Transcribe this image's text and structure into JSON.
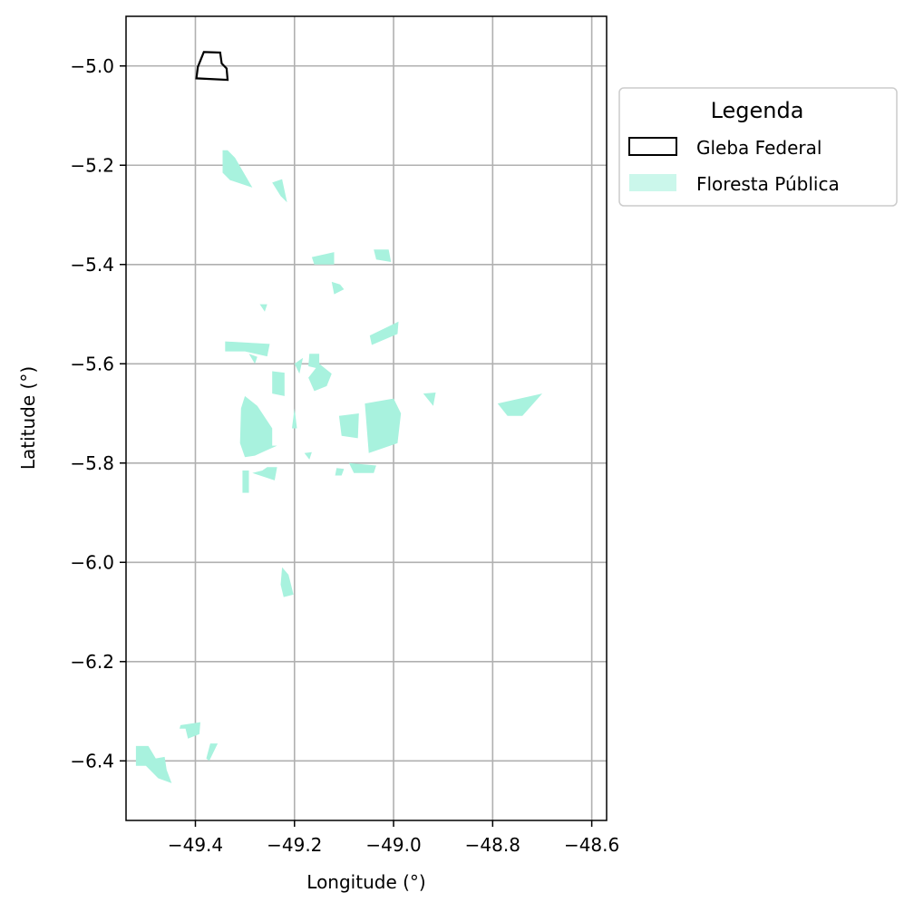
{
  "chart_data": {
    "type": "map",
    "xlabel": "Longitude (°)",
    "ylabel": "Latitude (°)",
    "xlim": [
      -49.54,
      -48.57
    ],
    "ylim": [
      -6.52,
      -4.9
    ],
    "x_ticks": [
      -49.4,
      -49.2,
      -49.0,
      -48.8,
      -48.6
    ],
    "x_tick_labels": [
      "−49.4",
      "−49.2",
      "−49.0",
      "−48.8",
      "−48.6"
    ],
    "y_ticks": [
      -5.0,
      -5.2,
      -5.4,
      -5.6,
      -5.8,
      -6.0,
      -6.2,
      -6.4
    ],
    "y_tick_labels": [
      "−5.0",
      "−5.2",
      "−5.4",
      "−5.6",
      "−5.8",
      "−6.0",
      "−6.2",
      "−6.4"
    ],
    "grid": true,
    "colors": {
      "forest_fill": "#a8f2de",
      "gleba_stroke": "#000000",
      "grid": "#b0b0b0",
      "legend_border": "#cccccc"
    },
    "legend": {
      "title": "Legenda",
      "placement": "outside-right-top",
      "entries": [
        {
          "label": "Gleba Federal",
          "style": "outline"
        },
        {
          "label": "Floresta Pública",
          "style": "fill"
        }
      ]
    },
    "gleba_federal": [
      [
        [
          -49.383,
          -4.972
        ],
        [
          -49.35,
          -4.973
        ],
        [
          -49.347,
          -4.995
        ],
        [
          -49.337,
          -5.005
        ],
        [
          -49.335,
          -5.028
        ],
        [
          -49.398,
          -5.025
        ],
        [
          -49.395,
          -5.002
        ]
      ]
    ],
    "floresta_publica": [
      [
        [
          -49.52,
          -6.37
        ],
        [
          -49.495,
          -6.37
        ],
        [
          -49.48,
          -6.395
        ],
        [
          -49.462,
          -6.392
        ],
        [
          -49.458,
          -6.418
        ],
        [
          -49.448,
          -6.445
        ],
        [
          -49.475,
          -6.435
        ],
        [
          -49.5,
          -6.41
        ],
        [
          -49.52,
          -6.41
        ]
      ],
      [
        [
          -49.43,
          -6.328
        ],
        [
          -49.39,
          -6.322
        ],
        [
          -49.392,
          -6.346
        ],
        [
          -49.415,
          -6.355
        ],
        [
          -49.42,
          -6.335
        ],
        [
          -49.432,
          -6.335
        ]
      ],
      [
        [
          -49.37,
          -6.365
        ],
        [
          -49.355,
          -6.365
        ],
        [
          -49.372,
          -6.4
        ],
        [
          -49.378,
          -6.395
        ]
      ],
      [
        [
          -49.3,
          -5.665
        ],
        [
          -49.275,
          -5.685
        ],
        [
          -49.245,
          -5.73
        ],
        [
          -49.245,
          -5.765
        ],
        [
          -49.235,
          -5.765
        ],
        [
          -49.258,
          -5.775
        ],
        [
          -49.28,
          -5.785
        ],
        [
          -49.3,
          -5.788
        ],
        [
          -49.31,
          -5.76
        ],
        [
          -49.308,
          -5.69
        ]
      ],
      [
        [
          -49.285,
          -5.82
        ],
        [
          -49.24,
          -5.835
        ],
        [
          -49.235,
          -5.808
        ],
        [
          -49.255,
          -5.808
        ],
        [
          -49.265,
          -5.815
        ]
      ],
      [
        [
          -49.305,
          -5.815
        ],
        [
          -49.292,
          -5.815
        ],
        [
          -49.292,
          -5.86
        ],
        [
          -49.305,
          -5.86
        ]
      ],
      [
        [
          -49.048,
          -5.543
        ],
        [
          -48.99,
          -5.515
        ],
        [
          -48.992,
          -5.54
        ],
        [
          -49.044,
          -5.562
        ]
      ],
      [
        [
          -49.225,
          -6.01
        ],
        [
          -49.212,
          -6.025
        ],
        [
          -49.202,
          -6.065
        ],
        [
          -49.222,
          -6.07
        ],
        [
          -49.228,
          -6.045
        ]
      ],
      [
        [
          -49.245,
          -5.235
        ],
        [
          -49.225,
          -5.228
        ],
        [
          -49.215,
          -5.275
        ],
        [
          -49.228,
          -5.262
        ]
      ],
      [
        [
          -49.345,
          -5.17
        ],
        [
          -49.335,
          -5.17
        ],
        [
          -49.32,
          -5.185
        ],
        [
          -49.285,
          -5.245
        ],
        [
          -49.33,
          -5.23
        ],
        [
          -49.345,
          -5.215
        ]
      ],
      [
        [
          -49.165,
          -5.385
        ],
        [
          -49.12,
          -5.375
        ],
        [
          -49.12,
          -5.4
        ],
        [
          -49.16,
          -5.4
        ]
      ],
      [
        [
          -49.04,
          -5.37
        ],
        [
          -49.01,
          -5.37
        ],
        [
          -49.005,
          -5.395
        ],
        [
          -49.035,
          -5.39
        ]
      ],
      [
        [
          -49.34,
          -5.555
        ],
        [
          -49.25,
          -5.56
        ],
        [
          -49.255,
          -5.585
        ],
        [
          -49.3,
          -5.575
        ],
        [
          -49.34,
          -5.575
        ]
      ],
      [
        [
          -49.172,
          -5.628
        ],
        [
          -49.15,
          -5.6
        ],
        [
          -49.125,
          -5.62
        ],
        [
          -49.135,
          -5.645
        ],
        [
          -49.16,
          -5.655
        ]
      ],
      [
        [
          -49.17,
          -5.58
        ],
        [
          -49.15,
          -5.58
        ],
        [
          -49.15,
          -5.61
        ],
        [
          -49.172,
          -5.605
        ]
      ],
      [
        [
          -49.2,
          -5.6
        ],
        [
          -49.183,
          -5.588
        ],
        [
          -49.19,
          -5.62
        ]
      ],
      [
        [
          -49.058,
          -5.68
        ],
        [
          -49.0,
          -5.67
        ],
        [
          -48.985,
          -5.7
        ],
        [
          -48.992,
          -5.76
        ],
        [
          -49.05,
          -5.78
        ]
      ],
      [
        [
          -49.11,
          -5.705
        ],
        [
          -49.07,
          -5.7
        ],
        [
          -49.072,
          -5.75
        ],
        [
          -49.105,
          -5.745
        ]
      ],
      [
        [
          -49.09,
          -5.8
        ],
        [
          -49.035,
          -5.805
        ],
        [
          -49.04,
          -5.82
        ],
        [
          -49.08,
          -5.82
        ]
      ],
      [
        [
          -49.115,
          -5.81
        ],
        [
          -49.1,
          -5.812
        ],
        [
          -49.105,
          -5.825
        ],
        [
          -49.118,
          -5.825
        ]
      ],
      [
        [
          -49.245,
          -5.615
        ],
        [
          -49.22,
          -5.618
        ],
        [
          -49.22,
          -5.665
        ],
        [
          -49.245,
          -5.66
        ]
      ],
      [
        [
          -49.2,
          -5.69
        ],
        [
          -49.205,
          -5.73
        ],
        [
          -49.195,
          -5.73
        ]
      ],
      [
        [
          -48.79,
          -5.68
        ],
        [
          -48.7,
          -5.66
        ],
        [
          -48.74,
          -5.705
        ],
        [
          -48.77,
          -5.705
        ]
      ],
      [
        [
          -48.94,
          -5.66
        ],
        [
          -48.915,
          -5.658
        ],
        [
          -48.92,
          -5.685
        ]
      ],
      [
        [
          -49.108,
          -5.44
        ],
        [
          -49.1,
          -5.45
        ],
        [
          -49.12,
          -5.46
        ],
        [
          -49.125,
          -5.435
        ]
      ],
      [
        [
          -49.292,
          -5.58
        ],
        [
          -49.275,
          -5.586
        ],
        [
          -49.28,
          -5.6
        ]
      ],
      [
        [
          -49.18,
          -5.78
        ],
        [
          -49.165,
          -5.778
        ],
        [
          -49.17,
          -5.793
        ]
      ],
      [
        [
          -49.27,
          -5.48
        ],
        [
          -49.255,
          -5.48
        ],
        [
          -49.26,
          -5.495
        ]
      ]
    ]
  }
}
